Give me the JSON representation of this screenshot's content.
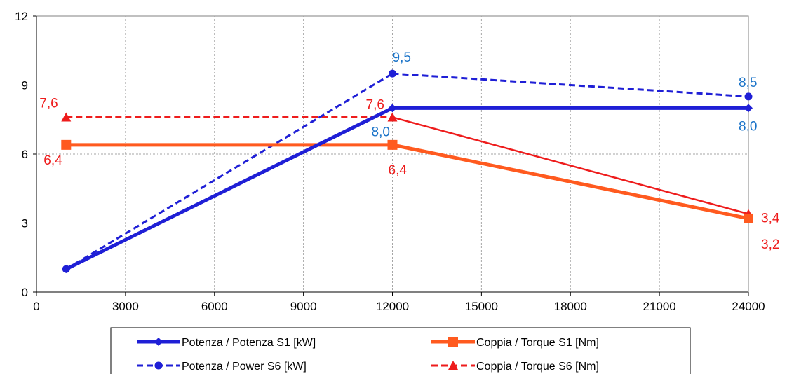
{
  "chart_data": {
    "type": "line",
    "title": "",
    "xlabel": "",
    "ylabel": "",
    "xlim": [
      0,
      24000
    ],
    "ylim": [
      0,
      12
    ],
    "x_ticks": [
      "0",
      "3000",
      "6000",
      "9000",
      "12000",
      "15000",
      "18000",
      "21000",
      "24000"
    ],
    "y_ticks": [
      "0",
      "3",
      "6",
      "9",
      "12"
    ],
    "grid": true,
    "legend_position": "bottom",
    "series": [
      {
        "name": "Potenza / Potenza S1 [kW]",
        "color": "#1f1fd6",
        "style": "solid-thick",
        "marker": "diamond",
        "points": [
          [
            1000,
            1.0
          ],
          [
            12000,
            8.0
          ],
          [
            24000,
            8.0
          ]
        ],
        "labels": [
          {
            "point": 1,
            "text": "8,0",
            "color": "#1a73c8"
          },
          {
            "point": 2,
            "text": "8,0",
            "color": "#1a73c8"
          }
        ]
      },
      {
        "name": "Coppia / Torque S1 [Nm]",
        "color": "#ff5a1f",
        "style": "solid-thick",
        "marker": "square",
        "points": [
          [
            1000,
            6.4
          ],
          [
            12000,
            6.4
          ],
          [
            24000,
            3.2
          ]
        ],
        "labels": [
          {
            "point": 0,
            "text": "6,4",
            "color": "#ee1c1c"
          },
          {
            "point": 1,
            "text": "6,4",
            "color": "#ee1c1c"
          },
          {
            "point": 2,
            "text": "3,2",
            "color": "#ee1c1c"
          }
        ]
      },
      {
        "name": "Potenza / Power S6 [kW]",
        "color": "#1f1fd6",
        "style": "dashed",
        "marker": "circle",
        "points": [
          [
            1000,
            1.0
          ],
          [
            12000,
            9.5
          ],
          [
            24000,
            8.5
          ]
        ],
        "labels": [
          {
            "point": 1,
            "text": "9,5",
            "color": "#1a73c8"
          },
          {
            "point": 2,
            "text": "8,5",
            "color": "#1a73c8"
          }
        ]
      },
      {
        "name": "Coppia / Torque S6  [Nm]",
        "color": "#ee1c1c",
        "style": "dashed-then-solid",
        "marker": "triangle",
        "points": [
          [
            1000,
            7.6
          ],
          [
            12000,
            7.6
          ],
          [
            24000,
            3.4
          ]
        ],
        "labels": [
          {
            "point": 0,
            "text": "7,6",
            "color": "#ee1c1c"
          },
          {
            "point": 1,
            "text": "7,6",
            "color": "#ee1c1c"
          },
          {
            "point": 2,
            "text": "3,4",
            "color": "#ee1c1c"
          }
        ]
      }
    ],
    "legend_order": [
      0,
      1,
      2,
      3
    ]
  }
}
